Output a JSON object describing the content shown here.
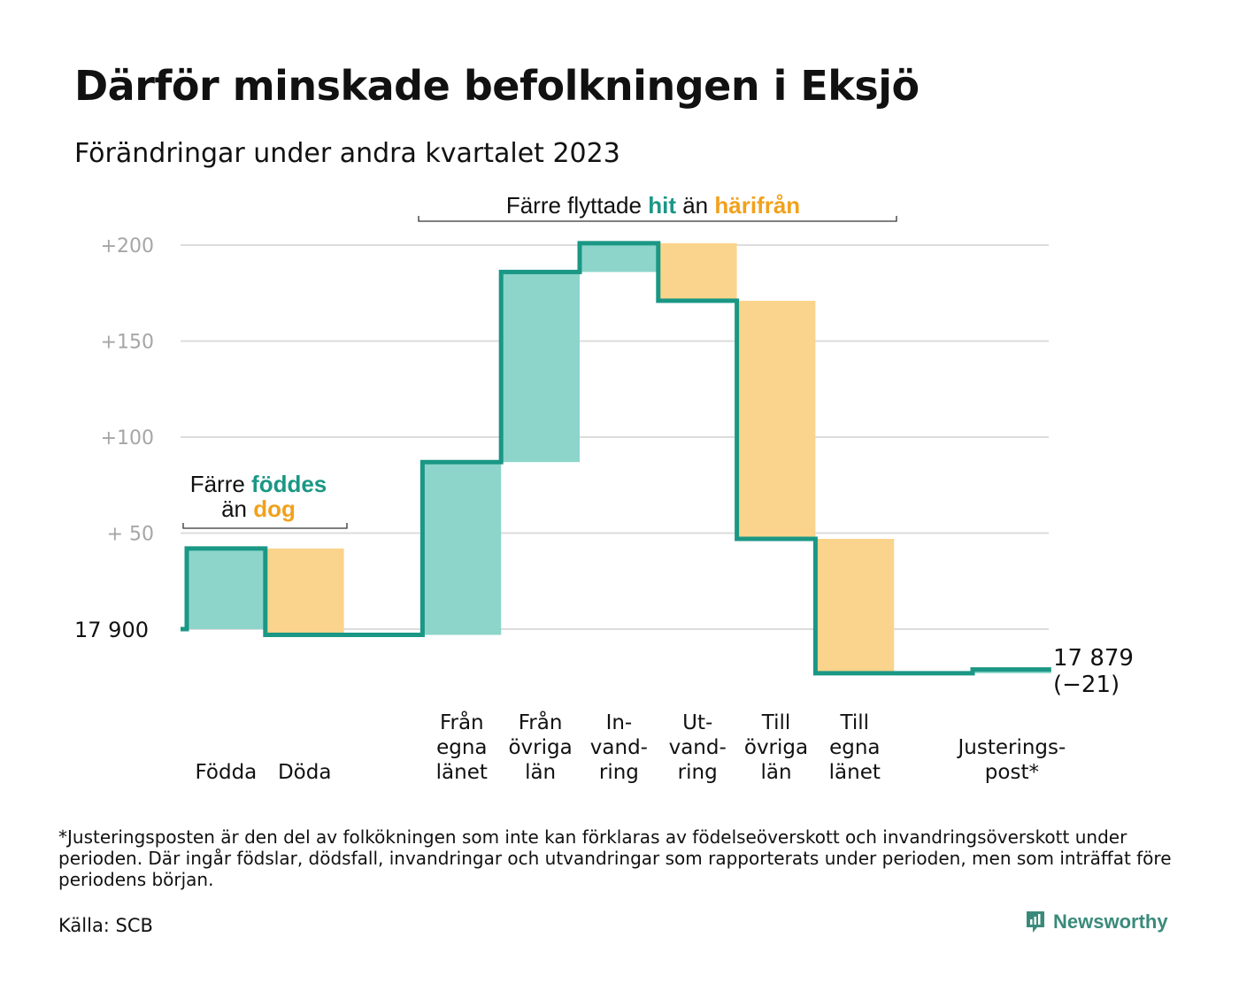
{
  "title": "Därför minskade befolkningen i Eksjö",
  "subtitle": "Förändringar under andra kvartalet 2023",
  "colors": {
    "positive": "#8dd5cb",
    "negative": "#fad48c",
    "line": "#1a9785",
    "hit": "#1a9785",
    "harifran": "#f2a11c",
    "brand": "#3a8a7b"
  },
  "annotations": {
    "births": {
      "prefix": "Färre",
      "highlight": "föddes",
      "mid": "än",
      "highlight2": "dog"
    },
    "moves": {
      "prefix": "Färre flyttade",
      "highlight": "hit",
      "mid": "än",
      "highlight2": "härifrån"
    }
  },
  "chart_data": {
    "type": "waterfall",
    "start_value": 17900,
    "start_label": "17  900",
    "end_value": 17879,
    "end_label": "17 879",
    "end_change_label": "(−21)",
    "ylim": [
      -25,
      205
    ],
    "yticks": [
      {
        "value": 200,
        "label": "+200"
      },
      {
        "value": 150,
        "label": "+150"
      },
      {
        "value": 100,
        "label": "+100"
      },
      {
        "value": 50,
        "label": "+  50"
      }
    ],
    "grid": true,
    "steps": [
      {
        "label": [
          "Födda"
        ],
        "change": 42
      },
      {
        "label": [
          "Döda"
        ],
        "change": -45
      },
      {
        "label": [],
        "change": 0
      },
      {
        "label": [
          "Från",
          "egna",
          "länet"
        ],
        "change": 90
      },
      {
        "label": [
          "Från",
          "övriga",
          "län"
        ],
        "change": 99
      },
      {
        "label": [
          "In-",
          "vand-",
          "ring"
        ],
        "change": 15
      },
      {
        "label": [
          "Ut-",
          "vand-",
          "ring"
        ],
        "change": -30
      },
      {
        "label": [
          "Till",
          "övriga",
          "län"
        ],
        "change": -124
      },
      {
        "label": [
          "Till",
          "egna",
          "länet"
        ],
        "change": -70
      },
      {
        "label": [],
        "change": 0
      },
      {
        "label": [
          "Justerings-",
          "post*"
        ],
        "change": 2
      }
    ]
  },
  "footnote": "*Justeringsposten är den del av folkökningen som inte kan förklaras av födelseöverskott och invandringsöverskott under perioden. Där ingår födslar, dödsfall, invandringar och utvandringar som rapporterats under perioden, men som inträffat före periodens början.",
  "source": "Källa: SCB",
  "brand": {
    "name": "Newsworthy",
    "icon": "newsworthy-logo-icon"
  }
}
